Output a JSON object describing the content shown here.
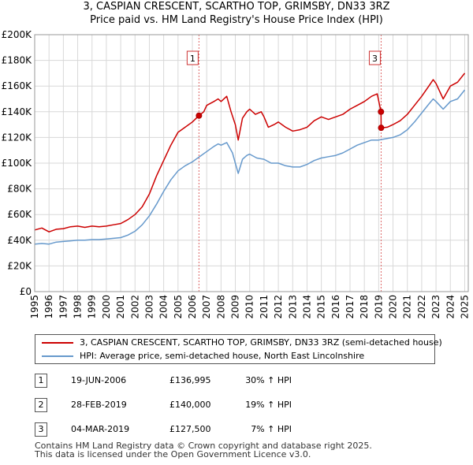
{
  "title_lines": [
    "3, CASPIAN CRESCENT, SCARTHO TOP, GRIMSBY, DN33 3RZ",
    "Price paid vs. HM Land Registry's House Price Index (HPI)"
  ],
  "colors": {
    "property": "#cc0000",
    "hpi": "#6699cc",
    "marker_line": "#dd6666",
    "grid": "#d8d8d8"
  },
  "chart_data": {
    "type": "line",
    "title": "3, CASPIAN CRESCENT, SCARTHO TOP, GRIMSBY, DN33 3RZ - Price paid vs. HM Land Registry's House Price Index (HPI)",
    "xlim": [
      1995,
      2025.25
    ],
    "ylim": [
      0,
      200000
    ],
    "x_ticks": [
      1995,
      1996,
      1997,
      1998,
      1999,
      2000,
      2001,
      2002,
      2003,
      2004,
      2005,
      2006,
      2007,
      2008,
      2009,
      2010,
      2011,
      2012,
      2013,
      2014,
      2015,
      2016,
      2017,
      2018,
      2019,
      2020,
      2021,
      2022,
      2023,
      2024,
      2025
    ],
    "y_ticks": [
      {
        "value": 0,
        "label": "£0"
      },
      {
        "value": 20000,
        "label": "£20K"
      },
      {
        "value": 40000,
        "label": "£40K"
      },
      {
        "value": 60000,
        "label": "£60K"
      },
      {
        "value": 80000,
        "label": "£80K"
      },
      {
        "value": 100000,
        "label": "£100K"
      },
      {
        "value": 120000,
        "label": "£120K"
      },
      {
        "value": 140000,
        "label": "£140K"
      },
      {
        "value": 160000,
        "label": "£160K"
      },
      {
        "value": 180000,
        "label": "£180K"
      },
      {
        "value": 200000,
        "label": "£200K"
      }
    ],
    "grid": true,
    "series": [
      {
        "name": "3, CASPIAN CRESCENT, SCARTHO TOP, GRIMSBY, DN33 3RZ (semi-detached house)",
        "color": "#cc0000",
        "points": [
          [
            1995.0,
            48000
          ],
          [
            1995.5,
            49500
          ],
          [
            1996.0,
            46500
          ],
          [
            1996.5,
            48500
          ],
          [
            1997.0,
            49000
          ],
          [
            1997.5,
            50500
          ],
          [
            1998.0,
            51000
          ],
          [
            1998.5,
            50000
          ],
          [
            1999.0,
            51000
          ],
          [
            1999.5,
            50500
          ],
          [
            2000.0,
            51000
          ],
          [
            2000.5,
            52000
          ],
          [
            2001.0,
            53000
          ],
          [
            2001.5,
            56000
          ],
          [
            2002.0,
            60000
          ],
          [
            2002.5,
            66000
          ],
          [
            2003.0,
            76000
          ],
          [
            2003.5,
            90000
          ],
          [
            2004.0,
            102000
          ],
          [
            2004.5,
            114000
          ],
          [
            2005.0,
            124000
          ],
          [
            2005.5,
            128000
          ],
          [
            2006.0,
            132000
          ],
          [
            2006.46,
            136995
          ],
          [
            2006.8,
            140000
          ],
          [
            2007.0,
            145000
          ],
          [
            2007.5,
            148000
          ],
          [
            2007.8,
            150000
          ],
          [
            2008.0,
            148000
          ],
          [
            2008.4,
            152000
          ],
          [
            2008.7,
            140000
          ],
          [
            2009.0,
            130000
          ],
          [
            2009.2,
            118000
          ],
          [
            2009.5,
            135000
          ],
          [
            2009.8,
            140000
          ],
          [
            2010.0,
            142000
          ],
          [
            2010.4,
            138000
          ],
          [
            2010.8,
            140000
          ],
          [
            2011.0,
            136000
          ],
          [
            2011.3,
            128000
          ],
          [
            2011.7,
            130000
          ],
          [
            2012.0,
            132000
          ],
          [
            2012.5,
            128000
          ],
          [
            2013.0,
            125000
          ],
          [
            2013.5,
            126000
          ],
          [
            2014.0,
            128000
          ],
          [
            2014.5,
            133000
          ],
          [
            2015.0,
            136000
          ],
          [
            2015.5,
            134000
          ],
          [
            2016.0,
            136000
          ],
          [
            2016.5,
            138000
          ],
          [
            2017.0,
            142000
          ],
          [
            2017.5,
            145000
          ],
          [
            2018.0,
            148000
          ],
          [
            2018.5,
            152000
          ],
          [
            2018.9,
            154000
          ],
          [
            2019.16,
            140000
          ],
          [
            2019.17,
            127500
          ],
          [
            2019.6,
            128000
          ],
          [
            2020.0,
            130000
          ],
          [
            2020.5,
            133000
          ],
          [
            2021.0,
            138000
          ],
          [
            2021.5,
            145000
          ],
          [
            2022.0,
            152000
          ],
          [
            2022.5,
            160000
          ],
          [
            2022.8,
            165000
          ],
          [
            2023.0,
            162000
          ],
          [
            2023.5,
            150000
          ],
          [
            2024.0,
            160000
          ],
          [
            2024.5,
            163000
          ],
          [
            2025.0,
            170000
          ]
        ]
      },
      {
        "name": "HPI: Average price, semi-detached house, North East Lincolnshire",
        "color": "#6699cc",
        "points": [
          [
            1995.0,
            37000
          ],
          [
            1995.5,
            37500
          ],
          [
            1996.0,
            37000
          ],
          [
            1996.5,
            38500
          ],
          [
            1997.0,
            39000
          ],
          [
            1997.5,
            39500
          ],
          [
            1998.0,
            40000
          ],
          [
            1998.5,
            40000
          ],
          [
            1999.0,
            40500
          ],
          [
            1999.5,
            40500
          ],
          [
            2000.0,
            41000
          ],
          [
            2000.5,
            41500
          ],
          [
            2001.0,
            42000
          ],
          [
            2001.5,
            44000
          ],
          [
            2002.0,
            47000
          ],
          [
            2002.5,
            52000
          ],
          [
            2003.0,
            59000
          ],
          [
            2003.5,
            68000
          ],
          [
            2004.0,
            78000
          ],
          [
            2004.5,
            87000
          ],
          [
            2005.0,
            94000
          ],
          [
            2005.5,
            98000
          ],
          [
            2006.0,
            101000
          ],
          [
            2006.5,
            105000
          ],
          [
            2007.0,
            109000
          ],
          [
            2007.5,
            113000
          ],
          [
            2007.8,
            115000
          ],
          [
            2008.0,
            114000
          ],
          [
            2008.4,
            116000
          ],
          [
            2008.8,
            108000
          ],
          [
            2009.0,
            100000
          ],
          [
            2009.2,
            92000
          ],
          [
            2009.5,
            103000
          ],
          [
            2009.8,
            106000
          ],
          [
            2010.0,
            107000
          ],
          [
            2010.5,
            104000
          ],
          [
            2011.0,
            103000
          ],
          [
            2011.5,
            100000
          ],
          [
            2012.0,
            100000
          ],
          [
            2012.5,
            98000
          ],
          [
            2013.0,
            97000
          ],
          [
            2013.5,
            97000
          ],
          [
            2014.0,
            99000
          ],
          [
            2014.5,
            102000
          ],
          [
            2015.0,
            104000
          ],
          [
            2015.5,
            105000
          ],
          [
            2016.0,
            106000
          ],
          [
            2016.5,
            108000
          ],
          [
            2017.0,
            111000
          ],
          [
            2017.5,
            114000
          ],
          [
            2018.0,
            116000
          ],
          [
            2018.5,
            118000
          ],
          [
            2019.0,
            118000
          ],
          [
            2019.5,
            119000
          ],
          [
            2020.0,
            120000
          ],
          [
            2020.5,
            122000
          ],
          [
            2021.0,
            126000
          ],
          [
            2021.5,
            132000
          ],
          [
            2022.0,
            139000
          ],
          [
            2022.5,
            146000
          ],
          [
            2022.8,
            150000
          ],
          [
            2023.0,
            148000
          ],
          [
            2023.5,
            142000
          ],
          [
            2024.0,
            148000
          ],
          [
            2024.5,
            150000
          ],
          [
            2025.0,
            157000
          ]
        ]
      }
    ],
    "sales": [
      {
        "label": "1",
        "x": 2006.46,
        "price": 136995
      },
      {
        "label": "2",
        "x": 2019.16,
        "price": 140000
      },
      {
        "label": "3",
        "x": 2019.17,
        "price": 127500
      }
    ],
    "vlines": [
      {
        "label": "1",
        "x": 2006.46
      },
      {
        "label": "3",
        "x": 2019.17
      }
    ]
  },
  "legend": {
    "property": "3, CASPIAN CRESCENT, SCARTHO TOP, GRIMSBY, DN33 3RZ (semi-detached house)",
    "hpi": "HPI: Average price, semi-detached house, North East Lincolnshire"
  },
  "transactions": [
    {
      "num": "1",
      "date": "19-JUN-2006",
      "price": "£136,995",
      "hpi": "30% ↑ HPI"
    },
    {
      "num": "2",
      "date": "28-FEB-2019",
      "price": "£140,000",
      "hpi": "19% ↑ HPI"
    },
    {
      "num": "3",
      "date": "04-MAR-2019",
      "price": "£127,500",
      "hpi": "7% ↑ HPI"
    }
  ],
  "footer": {
    "line1": "Contains HM Land Registry data © Crown copyright and database right 2025.",
    "line2": "This data is licensed under the Open Government Licence v3.0."
  }
}
